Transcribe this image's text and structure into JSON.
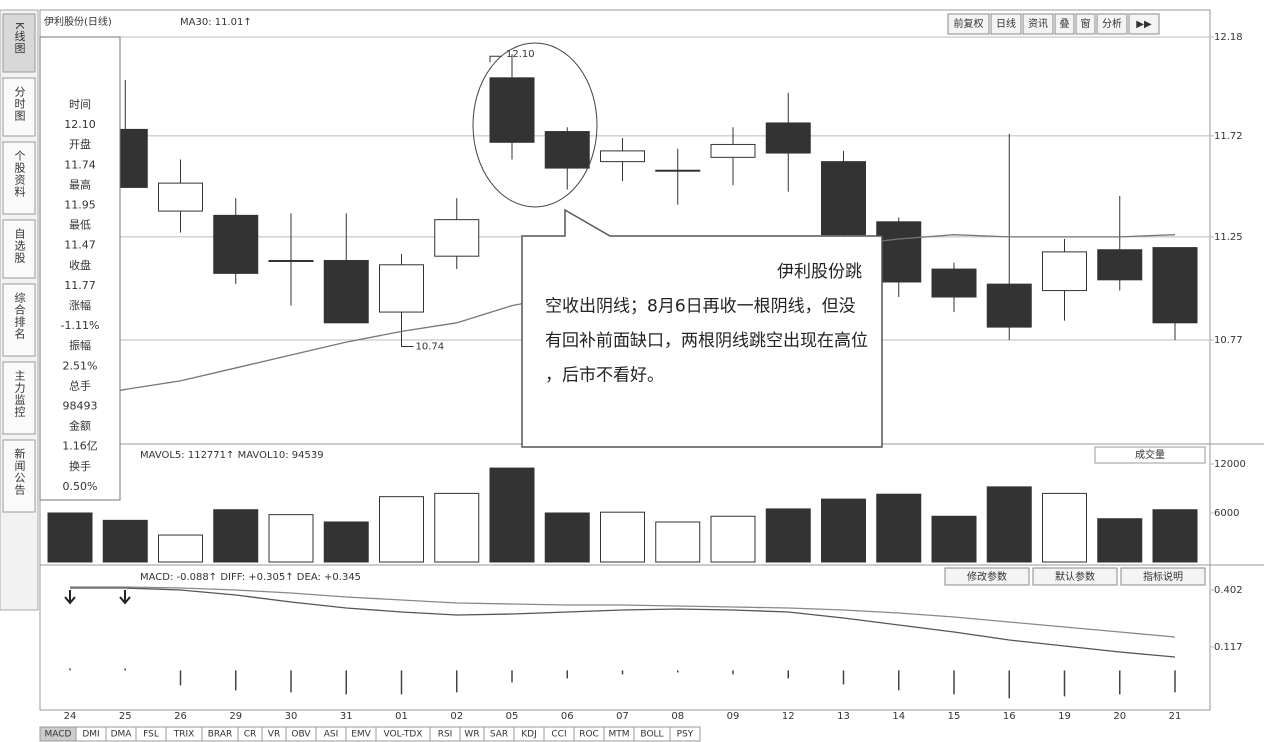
{
  "header": {
    "title": "伊利股份(日线)",
    "ma_label": "MA30: 11.01↑"
  },
  "toolbar": {
    "buttons": [
      "前复权",
      "日线",
      "资讯",
      "叠",
      "窗",
      "分析",
      "▶▶"
    ]
  },
  "sidebar": {
    "tabs": [
      "K线图",
      "分时图",
      "个股资料",
      "自选股",
      "综合排名",
      "主力监控",
      "新闻公告"
    ]
  },
  "info_panel": {
    "items": [
      "时间",
      "12.10",
      "开盘",
      "11.74",
      "最高",
      "11.95",
      "最低",
      "11.47",
      "收盘",
      "11.77",
      "涨幅",
      "-1.11%",
      "振幅",
      "2.51%",
      "总手",
      "98493",
      "金额",
      "1.16亿",
      "换手",
      "0.50%"
    ]
  },
  "callout": {
    "text": "伊利股份跳空收出阴线；8月6日再收一根阴线，但没有回补前面缺口，两根阴线跳空出现在高位，后市不看好。"
  },
  "volume_menu": "成交量",
  "macd_buttons": [
    "修改参数",
    "默认参数",
    "指标说明"
  ],
  "bottom_tabs": [
    "MACD",
    "DMI",
    "DMA",
    "FSL",
    "TRIX",
    "BRAR",
    "CR",
    "VR",
    "OBV",
    "ASI",
    "EMV",
    "VOL-TDX",
    "RSI",
    "WR",
    "SAR",
    "KDJ",
    "CCI",
    "ROC",
    "MTM",
    "BOLL",
    "PSY"
  ],
  "chart_data": [
    {
      "type": "candlestick",
      "categories": [
        "24",
        "25",
        "26",
        "29",
        "30",
        "31",
        "01",
        "02",
        "05",
        "06",
        "07",
        "08",
        "09",
        "12",
        "13",
        "14",
        "15",
        "16",
        "19",
        "20",
        "21"
      ],
      "open": [
        11.95,
        11.75,
        11.37,
        11.35,
        11.14,
        11.14,
        10.9,
        11.16,
        11.99,
        11.74,
        11.6,
        11.56,
        11.62,
        11.78,
        11.6,
        11.32,
        11.1,
        11.03,
        11.0,
        11.19,
        11.2
      ],
      "high": [
        11.98,
        11.98,
        11.61,
        11.43,
        11.36,
        11.36,
        11.17,
        11.43,
        12.1,
        11.76,
        11.71,
        11.66,
        11.76,
        11.92,
        11.65,
        11.34,
        11.13,
        11.73,
        11.24,
        11.44,
        11.2
      ],
      "low": [
        11.7,
        11.48,
        11.27,
        11.03,
        10.93,
        10.85,
        10.74,
        11.1,
        11.61,
        11.47,
        11.51,
        11.4,
        11.49,
        11.46,
        11.24,
        10.97,
        10.9,
        10.77,
        10.86,
        11.0,
        10.77
      ],
      "close": [
        11.8,
        11.48,
        11.5,
        11.08,
        11.14,
        10.85,
        11.12,
        11.33,
        11.69,
        11.57,
        11.65,
        11.56,
        11.68,
        11.64,
        11.26,
        11.04,
        10.97,
        10.83,
        11.18,
        11.05,
        10.85
      ],
      "ma": [
        10.49,
        10.54,
        10.58,
        10.64,
        10.7,
        10.76,
        10.81,
        10.85,
        10.93,
        10.98,
        11.05,
        11.1,
        11.14,
        11.18,
        11.21,
        11.24,
        11.26,
        11.25,
        11.25,
        11.25,
        11.26
      ],
      "ma_color": "#777777",
      "up_color": "#ffffff",
      "down_color": "#333333",
      "annotations": [
        "12.10",
        "10.74"
      ],
      "ylim": [
        10.3,
        12.18
      ],
      "yticks": [
        10.77,
        11.25,
        11.72,
        12.18
      ],
      "grid": true
    },
    {
      "type": "bar",
      "title": "MAVOL5: 112771↑ MAVOL10: 94539",
      "values": [
        6000,
        5100,
        3300,
        6400,
        5800,
        4900,
        8000,
        8400,
        11500,
        6000,
        6100,
        4900,
        5600,
        6500,
        7700,
        8300,
        5600,
        9200,
        8400,
        5300,
        6400
      ],
      "ylim": [
        0,
        12000
      ],
      "yticks": [
        6000,
        12000
      ]
    },
    {
      "type": "macd",
      "title": "MACD: -0.088↑ DIFF: +0.305↑ DEA: +0.345",
      "values": [
        0.01,
        0.01,
        -0.075,
        -0.1,
        -0.11,
        -0.12,
        -0.12,
        -0.11,
        -0.06,
        -0.04,
        -0.02,
        -0.01,
        -0.02,
        -0.04,
        -0.07,
        -0.1,
        -0.12,
        -0.14,
        -0.13,
        -0.12,
        -0.11
      ],
      "diff": [
        0.412,
        0.412,
        0.402,
        0.377,
        0.342,
        0.312,
        0.292,
        0.277,
        0.282,
        0.292,
        0.302,
        0.307,
        0.302,
        0.292,
        0.262,
        0.227,
        0.192,
        0.152,
        0.122,
        0.092,
        0.067
      ],
      "dea": [
        0.417,
        0.417,
        0.412,
        0.402,
        0.387,
        0.367,
        0.352,
        0.337,
        0.332,
        0.327,
        0.327,
        0.322,
        0.317,
        0.312,
        0.302,
        0.287,
        0.267,
        0.242,
        0.217,
        0.192,
        0.167
      ],
      "diff_color": "#555555",
      "dea_color": "#888888",
      "ylim": [
        -0.173,
        0.512
      ],
      "yticks": [
        0.117,
        0.402
      ]
    }
  ]
}
